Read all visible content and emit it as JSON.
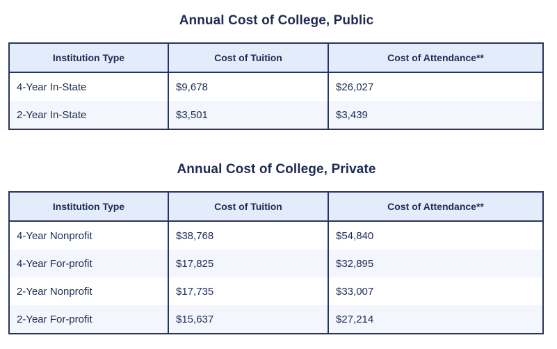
{
  "public": {
    "title": "Annual Cost of College, Public",
    "headers": [
      "Institution Type",
      "Cost of Tuition",
      "Cost of Attendance**"
    ],
    "rows": [
      [
        "4-Year In-State",
        "$9,678",
        "$26,027"
      ],
      [
        "2-Year In-State",
        "$3,501",
        "$3,439"
      ]
    ]
  },
  "private": {
    "title": "Annual Cost of College, Private",
    "headers": [
      "Institution Type",
      "Cost of Tuition",
      "Cost of Attendance**"
    ],
    "rows": [
      [
        "4-Year Nonprofit",
        "$38,768",
        "$54,840"
      ],
      [
        "4-Year For-profit",
        "$17,825",
        "$32,895"
      ],
      [
        "2-Year Nonprofit",
        "$17,735",
        "$33,007"
      ],
      [
        "2-Year For-profit",
        "$15,637",
        "$27,214"
      ]
    ]
  },
  "colors": {
    "border": "#27345f",
    "header_bg": "#e3ecfb",
    "alt_row_bg": "#f3f6fc",
    "text": "#1f2a52"
  }
}
